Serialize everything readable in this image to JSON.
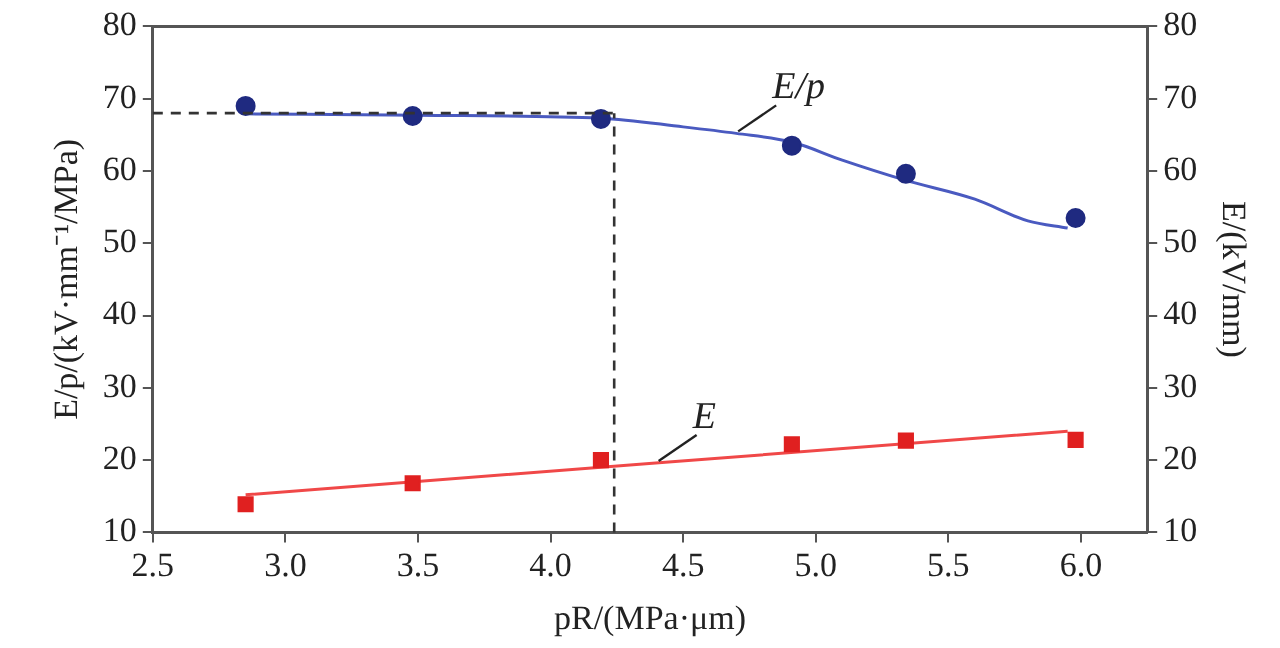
{
  "chart_data": {
    "type": "scatter",
    "xlabel": "pR/(MPa·μm)",
    "ylabel": "E/p/(kV·mm⁻¹/MPa)",
    "y2label": "E/(kV/mm)",
    "xlim": [
      2.5,
      6.25
    ],
    "xticks": [
      2.5,
      {
        "value": 3,
        "label": "3.0"
      },
      3.5,
      {
        "value": 4,
        "label": "4.0"
      },
      4.5,
      {
        "value": 5,
        "label": "5.0"
      },
      5.5,
      {
        "value": 6,
        "label": "6.0"
      }
    ],
    "ylim": [
      10,
      80
    ],
    "yticks": [
      10,
      20,
      30,
      40,
      50,
      60,
      70,
      80
    ],
    "y2lim": [
      10,
      80
    ],
    "y2ticks": [
      10,
      20,
      30,
      40,
      50,
      60,
      70,
      80
    ],
    "series": [
      {
        "color": "#1f2a80",
        "marker": "circle",
        "x": [
          2.85,
          3.48,
          4.19,
          4.91,
          5.34,
          5.98
        ],
        "values": [
          69.0,
          67.6,
          67.2,
          63.5,
          59.6,
          53.5
        ]
      },
      {
        "type": "line",
        "color": "#4a5ac0",
        "marker": "none",
        "x": [
          2.85,
          3.5,
          4.19,
          4.5,
          4.7,
          4.91,
          5.1,
          5.34,
          5.6,
          5.8,
          5.95
        ],
        "values": [
          67.9,
          67.7,
          67.3,
          66.1,
          65.2,
          64.0,
          61.5,
          58.7,
          56.1,
          53.1,
          52.1
        ]
      },
      {
        "axis": "y2",
        "color": "#e02020",
        "marker": "square",
        "x": [
          2.85,
          3.48,
          4.19,
          4.91,
          5.34,
          5.98
        ],
        "values": [
          13.9,
          16.8,
          20.0,
          22.2,
          22.7,
          22.8
        ]
      },
      {
        "type": "line",
        "axis": "y2",
        "color": "#f04848",
        "marker": "none",
        "x": [
          2.85,
          5.95
        ],
        "values": [
          15.2,
          24.0
        ]
      }
    ],
    "ref_lines": [
      {
        "axis": "y",
        "value": 68,
        "color": "#333333",
        "line_style": "dashed"
      },
      {
        "axis": "x",
        "value": 4.24,
        "color": "#333333",
        "line_style": "dashed"
      }
    ],
    "annotations": [
      {
        "text": "E/p",
        "x": 4.7,
        "y": 65.2
      },
      {
        "text": "E",
        "x": 4.4,
        "y": 19.6
      }
    ],
    "grid": false,
    "legend": false
  }
}
